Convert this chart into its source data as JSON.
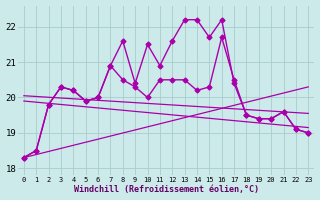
{
  "title": "",
  "xlabel": "Windchill (Refroidissement éolien,°C)",
  "ylabel": "",
  "bg_color": "#cceaea",
  "grid_color": "#aacccc",
  "line_color": "#aa00aa",
  "xlim": [
    -0.5,
    23.5
  ],
  "ylim": [
    17.8,
    22.6
  ],
  "yticks": [
    18,
    19,
    20,
    21,
    22
  ],
  "xticks": [
    0,
    1,
    2,
    3,
    4,
    5,
    6,
    7,
    8,
    9,
    10,
    11,
    12,
    13,
    14,
    15,
    16,
    17,
    18,
    19,
    20,
    21,
    22,
    23
  ],
  "series": [
    {
      "x": [
        0,
        1,
        2,
        3,
        4,
        5,
        6,
        7,
        8,
        9,
        10,
        11,
        12,
        13,
        14,
        15,
        16,
        17,
        18,
        19,
        20,
        21,
        22,
        23
      ],
      "y": [
        18.3,
        18.5,
        19.8,
        20.3,
        20.2,
        19.9,
        20.0,
        20.9,
        21.6,
        20.4,
        21.5,
        20.9,
        21.6,
        22.2,
        22.2,
        21.7,
        22.2,
        20.4,
        19.5,
        19.4,
        19.4,
        19.6,
        19.1,
        19.0
      ],
      "marker": "D",
      "markersize": 2.5,
      "linewidth": 1.0,
      "linestyle": "-"
    },
    {
      "x": [
        0,
        1,
        2,
        3,
        4,
        5,
        6,
        7,
        8,
        9,
        10,
        11,
        12,
        13,
        14,
        15,
        16,
        17,
        18,
        19,
        20,
        21,
        22,
        23
      ],
      "y": [
        18.3,
        18.5,
        19.8,
        20.3,
        20.2,
        19.9,
        20.0,
        20.9,
        20.5,
        20.3,
        20.0,
        20.5,
        20.5,
        20.5,
        20.2,
        20.3,
        21.7,
        20.5,
        19.5,
        19.4,
        19.4,
        19.6,
        19.1,
        19.0
      ],
      "marker": "D",
      "markersize": 2.5,
      "linewidth": 1.0,
      "linestyle": "-"
    },
    {
      "x": [
        0,
        23
      ],
      "y": [
        20.05,
        19.55
      ],
      "marker": null,
      "markersize": 0,
      "linewidth": 0.9,
      "linestyle": "-"
    },
    {
      "x": [
        0,
        23
      ],
      "y": [
        19.9,
        19.15
      ],
      "marker": null,
      "markersize": 0,
      "linewidth": 0.9,
      "linestyle": "-"
    },
    {
      "x": [
        0,
        23
      ],
      "y": [
        18.3,
        20.3
      ],
      "marker": null,
      "markersize": 0,
      "linewidth": 0.9,
      "linestyle": "-"
    }
  ]
}
